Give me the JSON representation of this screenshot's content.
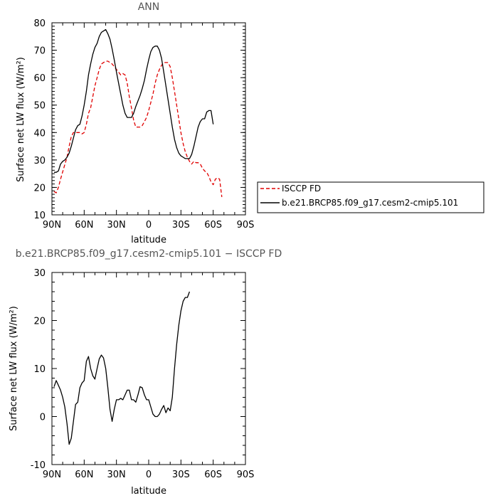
{
  "chart_data": [
    {
      "type": "line",
      "title": "ANN",
      "xlabel": "latitude",
      "ylabel": "Surface net LW flux (W/m²)",
      "xlim": [
        90,
        -90
      ],
      "ylim": [
        10,
        80
      ],
      "x_ticks": [
        {
          "value": 90,
          "label": "90N"
        },
        {
          "value": 60,
          "label": "60N"
        },
        {
          "value": 30,
          "label": "30N"
        },
        {
          "value": 0,
          "label": "0"
        },
        {
          "value": -30,
          "label": "30S"
        },
        {
          "value": -60,
          "label": "60S"
        },
        {
          "value": -90,
          "label": "90S"
        }
      ],
      "y_ticks": [
        10,
        20,
        30,
        40,
        50,
        60,
        70,
        80
      ],
      "legend_position": "right",
      "series": [
        {
          "name": "ISCCP FD",
          "color": "#e00000",
          "dash": "dashed",
          "points": [
            [
              88,
              18.5
            ],
            [
              86,
              18
            ],
            [
              84,
              20
            ],
            [
              82,
              23
            ],
            [
              79,
              27
            ],
            [
              76,
              31
            ],
            [
              74,
              35
            ],
            [
              72,
              38.5
            ],
            [
              70,
              40
            ],
            [
              68,
              40
            ],
            [
              66,
              40
            ],
            [
              64,
              40
            ],
            [
              62,
              39.5
            ],
            [
              60,
              40
            ],
            [
              58,
              43
            ],
            [
              56,
              47
            ],
            [
              54,
              49
            ],
            [
              52,
              53
            ],
            [
              50,
              57
            ],
            [
              48,
              60
            ],
            [
              46,
              63
            ],
            [
              44,
              65
            ],
            [
              42,
              65.5
            ],
            [
              40,
              66
            ],
            [
              38,
              66
            ],
            [
              36,
              65.5
            ],
            [
              34,
              65
            ],
            [
              32,
              64
            ],
            [
              30,
              63
            ],
            [
              28,
              62
            ],
            [
              26,
              61
            ],
            [
              24,
              61.5
            ],
            [
              22,
              61
            ],
            [
              20,
              58
            ],
            [
              18,
              53
            ],
            [
              16,
              49
            ],
            [
              14,
              44.5
            ],
            [
              12,
              42
            ],
            [
              10,
              42
            ],
            [
              8,
              42
            ],
            [
              6,
              42.5
            ],
            [
              4,
              44
            ],
            [
              2,
              45.5
            ],
            [
              0,
              48
            ],
            [
              -2,
              51
            ],
            [
              -4,
              54
            ],
            [
              -6,
              58
            ],
            [
              -8,
              61
            ],
            [
              -10,
              63
            ],
            [
              -12,
              64.5
            ],
            [
              -14,
              65.5
            ],
            [
              -16,
              65.5
            ],
            [
              -18,
              65.5
            ],
            [
              -20,
              64
            ],
            [
              -22,
              60
            ],
            [
              -24,
              55
            ],
            [
              -26,
              50
            ],
            [
              -28,
              45
            ],
            [
              -30,
              40
            ],
            [
              -32,
              36
            ],
            [
              -34,
              33
            ],
            [
              -36,
              31
            ],
            [
              -38,
              29.5
            ],
            [
              -40,
              28.5
            ],
            [
              -42,
              29.5
            ],
            [
              -44,
              29
            ],
            [
              -46,
              29
            ],
            [
              -48,
              28.5
            ],
            [
              -50,
              27
            ],
            [
              -52,
              26
            ],
            [
              -54,
              25.5
            ],
            [
              -56,
              24
            ],
            [
              -58,
              22
            ],
            [
              -60,
              21
            ],
            [
              -62,
              23
            ],
            [
              -64,
              23.5
            ],
            [
              -66,
              23
            ],
            [
              -68,
              16.5
            ]
          ]
        },
        {
          "name": "b.e21.BRCP85.f09_g17.cesm2-cmip5.101",
          "color": "#000000",
          "dash": "solid",
          "points": [
            [
              88,
              25.5
            ],
            [
              86,
              25.5
            ],
            [
              84,
              26
            ],
            [
              82,
              28.5
            ],
            [
              80,
              29.5
            ],
            [
              78,
              30
            ],
            [
              76,
              31
            ],
            [
              74,
              32.5
            ],
            [
              72,
              35
            ],
            [
              70,
              38
            ],
            [
              68,
              41
            ],
            [
              66,
              42.5
            ],
            [
              64,
              43
            ],
            [
              62,
              46
            ],
            [
              60,
              50
            ],
            [
              58,
              55
            ],
            [
              56,
              61
            ],
            [
              54,
              65
            ],
            [
              52,
              68.5
            ],
            [
              50,
              71
            ],
            [
              48,
              72.5
            ],
            [
              46,
              75
            ],
            [
              44,
              76.5
            ],
            [
              42,
              77
            ],
            [
              40,
              77.5
            ],
            [
              38,
              76
            ],
            [
              36,
              74
            ],
            [
              34,
              70.5
            ],
            [
              32,
              66.5
            ],
            [
              30,
              62
            ],
            [
              28,
              58
            ],
            [
              26,
              54
            ],
            [
              24,
              50
            ],
            [
              22,
              47
            ],
            [
              20,
              45.5
            ],
            [
              18,
              45.5
            ],
            [
              16,
              45.5
            ],
            [
              14,
              47
            ],
            [
              12,
              49.5
            ],
            [
              10,
              51.5
            ],
            [
              8,
              53.5
            ],
            [
              6,
              56
            ],
            [
              4,
              59
            ],
            [
              2,
              63
            ],
            [
              0,
              66.5
            ],
            [
              -2,
              69.5
            ],
            [
              -4,
              71
            ],
            [
              -6,
              71.5
            ],
            [
              -8,
              71.5
            ],
            [
              -10,
              70
            ],
            [
              -12,
              67
            ],
            [
              -14,
              62
            ],
            [
              -16,
              57
            ],
            [
              -18,
              52
            ],
            [
              -20,
              47
            ],
            [
              -22,
              42
            ],
            [
              -24,
              37.5
            ],
            [
              -26,
              34.5
            ],
            [
              -28,
              32.5
            ],
            [
              -30,
              31.5
            ],
            [
              -32,
              31
            ],
            [
              -34,
              30.5
            ],
            [
              -36,
              30.5
            ],
            [
              -38,
              30.5
            ],
            [
              -40,
              32
            ],
            [
              -42,
              35
            ],
            [
              -44,
              38.5
            ],
            [
              -46,
              42
            ],
            [
              -48,
              44
            ],
            [
              -50,
              45
            ],
            [
              -52,
              45
            ],
            [
              -54,
              47.5
            ],
            [
              -56,
              48
            ],
            [
              -58,
              48
            ],
            [
              -60,
              43
            ]
          ]
        }
      ]
    },
    {
      "type": "line",
      "title": "b.e21.BRCP85.f09_g17.cesm2-cmip5.101 − ISCCP FD",
      "xlabel": "latitude",
      "ylabel": "Surface net LW flux (W/m²)",
      "xlim": [
        90,
        -90
      ],
      "ylim": [
        -10,
        30
      ],
      "x_ticks": [
        {
          "value": 90,
          "label": "90N"
        },
        {
          "value": 60,
          "label": "60N"
        },
        {
          "value": 30,
          "label": "30N"
        },
        {
          "value": 0,
          "label": "0"
        },
        {
          "value": -30,
          "label": "30S"
        },
        {
          "value": -60,
          "label": "60S"
        },
        {
          "value": -90,
          "label": "90S"
        }
      ],
      "y_ticks": [
        -10,
        0,
        10,
        20,
        30
      ],
      "series": [
        {
          "color": "#000000",
          "dash": "solid",
          "points": [
            [
              88,
              6.2
            ],
            [
              86,
              7.5
            ],
            [
              84,
              6.5
            ],
            [
              82,
              5.5
            ],
            [
              80,
              4
            ],
            [
              78,
              2
            ],
            [
              76,
              -1.5
            ],
            [
              74,
              -5.8
            ],
            [
              72,
              -4.5
            ],
            [
              70,
              -1
            ],
            [
              68,
              2.5
            ],
            [
              66,
              3
            ],
            [
              64,
              6
            ],
            [
              62,
              7
            ],
            [
              60,
              7.5
            ],
            [
              58,
              11.5
            ],
            [
              56,
              12.5
            ],
            [
              54,
              10
            ],
            [
              52,
              8.5
            ],
            [
              50,
              7.8
            ],
            [
              48,
              10
            ],
            [
              46,
              12
            ],
            [
              44,
              12.8
            ],
            [
              42,
              12.2
            ],
            [
              40,
              10
            ],
            [
              38,
              6
            ],
            [
              36,
              1.5
            ],
            [
              34,
              -1
            ],
            [
              32,
              1.5
            ],
            [
              30,
              3.5
            ],
            [
              28,
              3.5
            ],
            [
              26,
              3.8
            ],
            [
              24,
              3.5
            ],
            [
              22,
              4.5
            ],
            [
              20,
              5.5
            ],
            [
              18,
              5.5
            ],
            [
              16,
              3.5
            ],
            [
              14,
              3.5
            ],
            [
              12,
              3
            ],
            [
              10,
              4.5
            ],
            [
              8,
              6.2
            ],
            [
              6,
              6
            ],
            [
              4,
              4.5
            ],
            [
              2,
              3.5
            ],
            [
              0,
              3.5
            ],
            [
              -2,
              2
            ],
            [
              -4,
              0.5
            ],
            [
              -6,
              0
            ],
            [
              -8,
              0
            ],
            [
              -10,
              0.5
            ],
            [
              -12,
              1.5
            ],
            [
              -14,
              2.3
            ],
            [
              -16,
              0.8
            ],
            [
              -18,
              1.8
            ],
            [
              -20,
              1.2
            ],
            [
              -22,
              4
            ],
            [
              -24,
              10
            ],
            [
              -26,
              15
            ],
            [
              -28,
              19
            ],
            [
              -30,
              22
            ],
            [
              -32,
              24
            ],
            [
              -34,
              24.8
            ],
            [
              -36,
              24.8
            ],
            [
              -38,
              26
            ]
          ]
        }
      ]
    }
  ]
}
